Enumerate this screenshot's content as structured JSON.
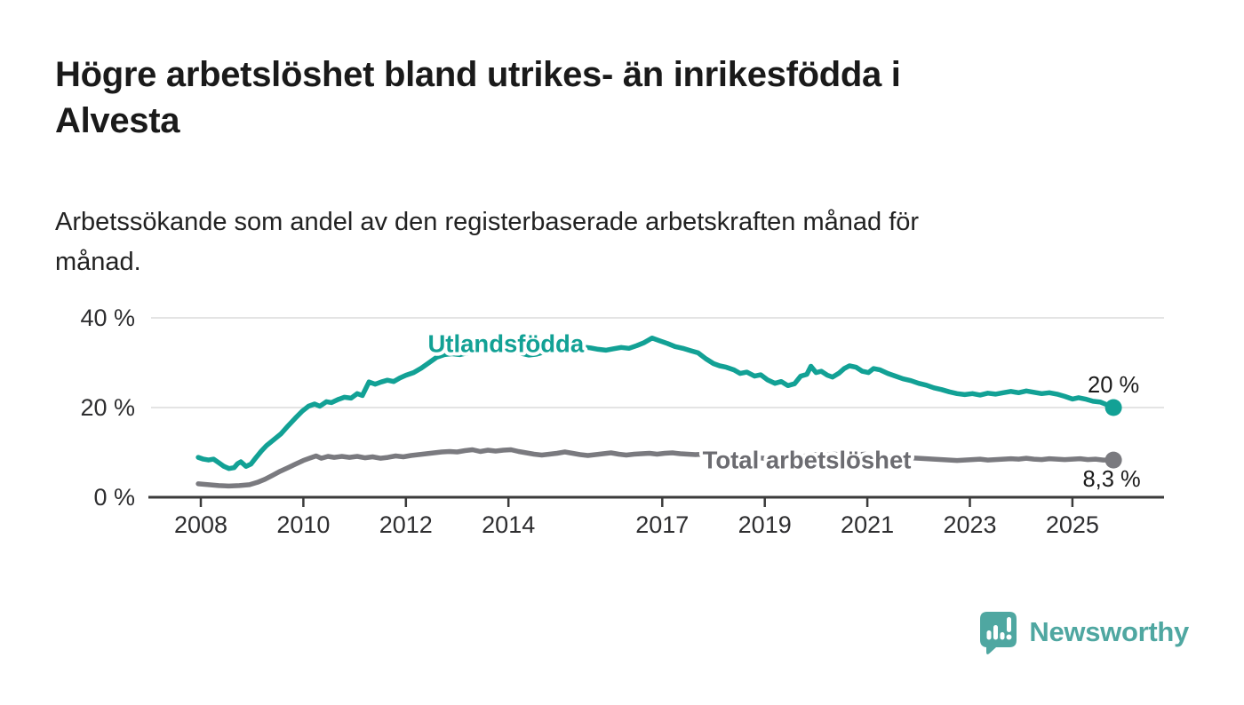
{
  "header": {
    "title": "Högre arbetslöshet bland utrikes- än inrikesfödda i\nAlvesta",
    "subtitle": "Arbetssökande som andel av den registerbaserade arbetskraften månad för\nmånad."
  },
  "footer": {
    "brand": "Newsworthy"
  },
  "colors": {
    "foreign_born_line": "#12A195",
    "total_line": "#7A7A7F",
    "total_label": "#6C6C71",
    "axis": "#3B3B3B",
    "grid": "#DCDCDC",
    "text": "#1A1A1A",
    "brand_teal": "#4FA7A1"
  },
  "chart_data": {
    "type": "line",
    "title": "Högre arbetslöshet bland utrikes- än inrikesfödda i Alvesta",
    "subtitle": "Arbetssökande som andel av den registerbaserade arbetskraften månad för månad.",
    "grid": true,
    "legend_position": "inline-labels",
    "x_axis": {
      "range": [
        2007.0,
        2026.8
      ],
      "ticks": [
        2008,
        2010,
        2012,
        2014,
        2017,
        2019,
        2021,
        2023,
        2025
      ],
      "tick_labels": [
        "2008",
        "2010",
        "2012",
        "2014",
        "2017",
        "2019",
        "2021",
        "2023",
        "2025"
      ]
    },
    "y_axis": {
      "range": [
        0,
        40
      ],
      "unit": "%",
      "ticks": [
        0,
        20,
        40
      ],
      "tick_labels": [
        "0 %",
        "20 %",
        "40 %"
      ]
    },
    "series": [
      {
        "name": "Utlandsfödda",
        "color": "#12A195",
        "label_color": "#12A195",
        "end_value": 20.0,
        "end_label": "20 %",
        "label_pos": {
          "x": 2013.95,
          "y": 32.4
        },
        "points": [
          [
            2007.95,
            8.9
          ],
          [
            2008.05,
            8.5
          ],
          [
            2008.15,
            8.3
          ],
          [
            2008.25,
            8.5
          ],
          [
            2008.35,
            7.7
          ],
          [
            2008.45,
            6.9
          ],
          [
            2008.55,
            6.4
          ],
          [
            2008.65,
            6.6
          ],
          [
            2008.72,
            7.5
          ],
          [
            2008.78,
            7.9
          ],
          [
            2008.88,
            6.9
          ],
          [
            2008.98,
            7.4
          ],
          [
            2009.08,
            8.9
          ],
          [
            2009.18,
            10.3
          ],
          [
            2009.28,
            11.5
          ],
          [
            2009.42,
            12.8
          ],
          [
            2009.56,
            14.1
          ],
          [
            2009.7,
            15.9
          ],
          [
            2009.84,
            17.6
          ],
          [
            2009.98,
            19.2
          ],
          [
            2010.1,
            20.3
          ],
          [
            2010.22,
            20.8
          ],
          [
            2010.32,
            20.3
          ],
          [
            2010.45,
            21.3
          ],
          [
            2010.55,
            21.1
          ],
          [
            2010.68,
            21.8
          ],
          [
            2010.8,
            22.3
          ],
          [
            2010.93,
            22.1
          ],
          [
            2011.05,
            23.1
          ],
          [
            2011.15,
            22.7
          ],
          [
            2011.28,
            25.7
          ],
          [
            2011.4,
            25.2
          ],
          [
            2011.52,
            25.7
          ],
          [
            2011.64,
            26.1
          ],
          [
            2011.76,
            25.8
          ],
          [
            2011.88,
            26.6
          ],
          [
            2012.0,
            27.2
          ],
          [
            2012.15,
            27.8
          ],
          [
            2012.3,
            28.8
          ],
          [
            2012.45,
            30.0
          ],
          [
            2012.6,
            31.2
          ],
          [
            2012.75,
            31.8
          ],
          [
            2012.9,
            32.0
          ],
          [
            2013.05,
            31.8
          ],
          [
            2013.2,
            32.2
          ],
          [
            2013.35,
            32.6
          ],
          [
            2013.5,
            32.9
          ],
          [
            2013.65,
            32.5
          ],
          [
            2013.8,
            32.7
          ],
          [
            2013.95,
            32.4
          ],
          [
            2014.1,
            32.7
          ],
          [
            2014.25,
            32.1
          ],
          [
            2014.4,
            31.7
          ],
          [
            2014.55,
            31.9
          ],
          [
            2014.7,
            32.4
          ],
          [
            2014.85,
            32.2
          ],
          [
            2015.0,
            32.8
          ],
          [
            2015.15,
            33.2
          ],
          [
            2015.3,
            33.0
          ],
          [
            2015.45,
            33.5
          ],
          [
            2015.6,
            33.3
          ],
          [
            2015.75,
            33.0
          ],
          [
            2015.9,
            32.8
          ],
          [
            2016.05,
            33.1
          ],
          [
            2016.2,
            33.4
          ],
          [
            2016.35,
            33.2
          ],
          [
            2016.5,
            33.8
          ],
          [
            2016.65,
            34.5
          ],
          [
            2016.8,
            35.5
          ],
          [
            2016.95,
            34.9
          ],
          [
            2017.1,
            34.3
          ],
          [
            2017.25,
            33.6
          ],
          [
            2017.4,
            33.2
          ],
          [
            2017.55,
            32.7
          ],
          [
            2017.7,
            32.2
          ],
          [
            2017.85,
            30.9
          ],
          [
            2018.0,
            29.8
          ],
          [
            2018.12,
            29.3
          ],
          [
            2018.25,
            29.0
          ],
          [
            2018.4,
            28.4
          ],
          [
            2018.52,
            27.6
          ],
          [
            2018.65,
            27.9
          ],
          [
            2018.8,
            27.0
          ],
          [
            2018.92,
            27.3
          ],
          [
            2019.05,
            26.2
          ],
          [
            2019.2,
            25.4
          ],
          [
            2019.32,
            25.8
          ],
          [
            2019.45,
            24.9
          ],
          [
            2019.58,
            25.3
          ],
          [
            2019.7,
            27.0
          ],
          [
            2019.82,
            27.4
          ],
          [
            2019.9,
            29.2
          ],
          [
            2020.0,
            27.8
          ],
          [
            2020.1,
            28.1
          ],
          [
            2020.22,
            27.2
          ],
          [
            2020.32,
            26.8
          ],
          [
            2020.45,
            27.7
          ],
          [
            2020.55,
            28.7
          ],
          [
            2020.65,
            29.3
          ],
          [
            2020.78,
            29.0
          ],
          [
            2020.9,
            28.1
          ],
          [
            2021.02,
            27.8
          ],
          [
            2021.12,
            28.7
          ],
          [
            2021.25,
            28.4
          ],
          [
            2021.4,
            27.6
          ],
          [
            2021.55,
            27.0
          ],
          [
            2021.7,
            26.4
          ],
          [
            2021.85,
            26.0
          ],
          [
            2022.0,
            25.4
          ],
          [
            2022.15,
            25.0
          ],
          [
            2022.3,
            24.4
          ],
          [
            2022.45,
            24.0
          ],
          [
            2022.6,
            23.5
          ],
          [
            2022.75,
            23.1
          ],
          [
            2022.9,
            22.9
          ],
          [
            2023.05,
            23.1
          ],
          [
            2023.2,
            22.8
          ],
          [
            2023.35,
            23.2
          ],
          [
            2023.5,
            23.0
          ],
          [
            2023.65,
            23.3
          ],
          [
            2023.8,
            23.6
          ],
          [
            2023.95,
            23.3
          ],
          [
            2024.1,
            23.7
          ],
          [
            2024.25,
            23.4
          ],
          [
            2024.4,
            23.1
          ],
          [
            2024.55,
            23.3
          ],
          [
            2024.7,
            23.0
          ],
          [
            2024.85,
            22.5
          ],
          [
            2025.0,
            21.9
          ],
          [
            2025.12,
            22.2
          ],
          [
            2025.25,
            21.9
          ],
          [
            2025.4,
            21.4
          ],
          [
            2025.55,
            21.2
          ],
          [
            2025.68,
            20.6
          ],
          [
            2025.8,
            20.0
          ]
        ]
      },
      {
        "name": "Total arbetslöshet",
        "color": "#7A7A7F",
        "label_color": "#6C6C71",
        "end_value": 8.3,
        "end_label": "8,3 %",
        "label_pos": {
          "x": 2019.82,
          "y": 6.4
        },
        "points": [
          [
            2007.95,
            3.0
          ],
          [
            2008.15,
            2.8
          ],
          [
            2008.35,
            2.6
          ],
          [
            2008.55,
            2.5
          ],
          [
            2008.75,
            2.6
          ],
          [
            2008.95,
            2.8
          ],
          [
            2009.1,
            3.3
          ],
          [
            2009.25,
            4.0
          ],
          [
            2009.4,
            4.9
          ],
          [
            2009.55,
            5.8
          ],
          [
            2009.7,
            6.6
          ],
          [
            2009.85,
            7.4
          ],
          [
            2010.0,
            8.2
          ],
          [
            2010.12,
            8.7
          ],
          [
            2010.25,
            9.2
          ],
          [
            2010.35,
            8.7
          ],
          [
            2010.48,
            9.1
          ],
          [
            2010.6,
            8.9
          ],
          [
            2010.75,
            9.1
          ],
          [
            2010.9,
            8.9
          ],
          [
            2011.05,
            9.1
          ],
          [
            2011.2,
            8.8
          ],
          [
            2011.35,
            9.0
          ],
          [
            2011.5,
            8.7
          ],
          [
            2011.65,
            8.9
          ],
          [
            2011.8,
            9.2
          ],
          [
            2011.95,
            9.0
          ],
          [
            2012.1,
            9.3
          ],
          [
            2012.25,
            9.5
          ],
          [
            2012.4,
            9.7
          ],
          [
            2012.55,
            9.9
          ],
          [
            2012.7,
            10.1
          ],
          [
            2012.85,
            10.2
          ],
          [
            2013.0,
            10.1
          ],
          [
            2013.15,
            10.4
          ],
          [
            2013.3,
            10.6
          ],
          [
            2013.45,
            10.2
          ],
          [
            2013.6,
            10.5
          ],
          [
            2013.75,
            10.3
          ],
          [
            2013.9,
            10.5
          ],
          [
            2014.05,
            10.6
          ],
          [
            2014.2,
            10.2
          ],
          [
            2014.35,
            9.9
          ],
          [
            2014.5,
            9.6
          ],
          [
            2014.65,
            9.4
          ],
          [
            2014.8,
            9.6
          ],
          [
            2014.95,
            9.8
          ],
          [
            2015.1,
            10.1
          ],
          [
            2015.25,
            9.8
          ],
          [
            2015.4,
            9.5
          ],
          [
            2015.55,
            9.3
          ],
          [
            2015.7,
            9.5
          ],
          [
            2015.85,
            9.7
          ],
          [
            2016.0,
            9.9
          ],
          [
            2016.15,
            9.6
          ],
          [
            2016.3,
            9.4
          ],
          [
            2016.45,
            9.6
          ],
          [
            2016.6,
            9.7
          ],
          [
            2016.75,
            9.8
          ],
          [
            2016.9,
            9.6
          ],
          [
            2017.05,
            9.8
          ],
          [
            2017.2,
            9.9
          ],
          [
            2017.35,
            9.7
          ],
          [
            2017.5,
            9.6
          ],
          [
            2017.65,
            9.5
          ],
          [
            2017.8,
            9.6
          ],
          [
            2017.95,
            9.4
          ],
          [
            2018.1,
            9.5
          ],
          [
            2018.25,
            9.3
          ],
          [
            2018.4,
            9.1
          ],
          [
            2018.55,
            9.0
          ],
          [
            2018.7,
            8.9
          ],
          [
            2018.85,
            8.8
          ],
          [
            2019.0,
            8.7
          ],
          [
            2019.15,
            8.6
          ],
          [
            2019.3,
            8.7
          ],
          [
            2019.45,
            8.8
          ],
          [
            2019.6,
            8.9
          ],
          [
            2019.75,
            9.1
          ],
          [
            2019.9,
            9.4
          ],
          [
            2020.05,
            9.6
          ],
          [
            2020.2,
            9.4
          ],
          [
            2020.35,
            9.6
          ],
          [
            2020.5,
            9.5
          ],
          [
            2020.65,
            9.6
          ],
          [
            2020.8,
            9.5
          ],
          [
            2020.95,
            9.6
          ],
          [
            2021.1,
            9.4
          ],
          [
            2021.25,
            9.2
          ],
          [
            2021.4,
            9.1
          ],
          [
            2021.55,
            9.0
          ],
          [
            2021.7,
            8.9
          ],
          [
            2021.85,
            8.8
          ],
          [
            2022.0,
            8.7
          ],
          [
            2022.15,
            8.6
          ],
          [
            2022.3,
            8.5
          ],
          [
            2022.45,
            8.4
          ],
          [
            2022.6,
            8.3
          ],
          [
            2022.75,
            8.2
          ],
          [
            2022.9,
            8.3
          ],
          [
            2023.05,
            8.4
          ],
          [
            2023.2,
            8.5
          ],
          [
            2023.35,
            8.3
          ],
          [
            2023.5,
            8.4
          ],
          [
            2023.65,
            8.5
          ],
          [
            2023.8,
            8.6
          ],
          [
            2023.95,
            8.5
          ],
          [
            2024.1,
            8.7
          ],
          [
            2024.25,
            8.5
          ],
          [
            2024.4,
            8.4
          ],
          [
            2024.55,
            8.6
          ],
          [
            2024.7,
            8.5
          ],
          [
            2024.85,
            8.4
          ],
          [
            2025.0,
            8.5
          ],
          [
            2025.15,
            8.6
          ],
          [
            2025.3,
            8.4
          ],
          [
            2025.45,
            8.5
          ],
          [
            2025.6,
            8.3
          ],
          [
            2025.8,
            8.3
          ]
        ]
      }
    ]
  }
}
